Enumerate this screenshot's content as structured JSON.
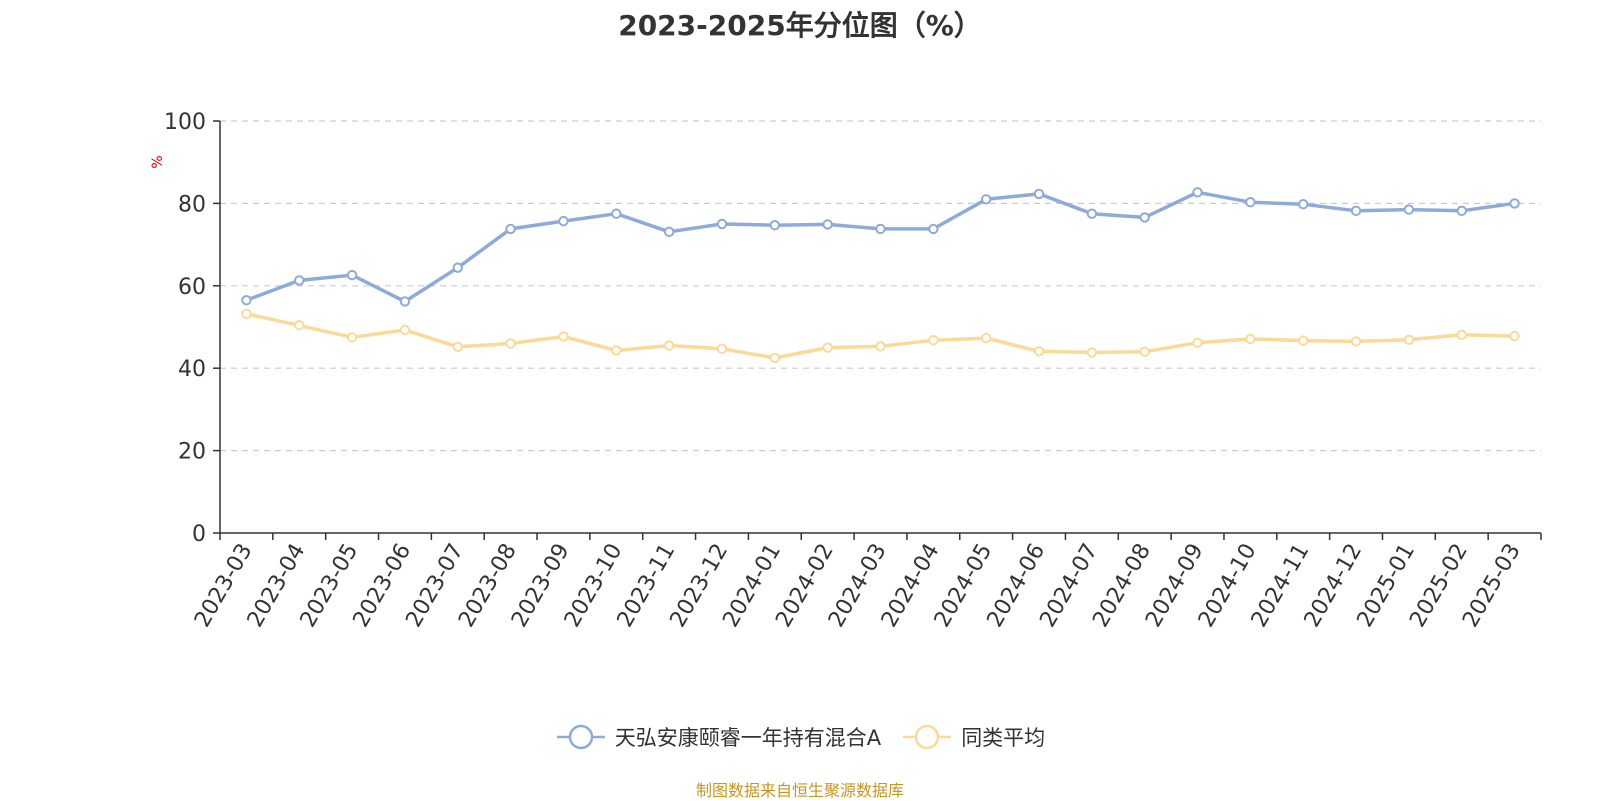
{
  "chart_data": {
    "type": "line",
    "title": "2023-2025年分位图（%）",
    "ylabel": "%",
    "xlabel": "",
    "ylim": [
      0,
      100
    ],
    "yticks": [
      0,
      20,
      40,
      60,
      80,
      100
    ],
    "grid": true,
    "legend_position": "bottom",
    "categories": [
      "2023-03",
      "2023-04",
      "2023-05",
      "2023-06",
      "2023-07",
      "2023-08",
      "2023-09",
      "2023-10",
      "2023-11",
      "2023-12",
      "2024-01",
      "2024-02",
      "2024-03",
      "2024-04",
      "2024-05",
      "2024-06",
      "2024-07",
      "2024-08",
      "2024-09",
      "2024-10",
      "2024-11",
      "2024-12",
      "2025-01",
      "2025-02",
      "2025-03"
    ],
    "series": [
      {
        "name": "天弘安康颐睿一年持有混合A",
        "color": "#8eaad8",
        "values": [
          56.5,
          61.3,
          62.6,
          56.2,
          64.4,
          73.8,
          75.7,
          77.5,
          73.1,
          75.0,
          74.7,
          74.9,
          73.8,
          73.8,
          81.0,
          82.3,
          77.5,
          76.6,
          82.7,
          80.3,
          79.8,
          78.2,
          78.5,
          78.2,
          80.0
        ]
      },
      {
        "name": "同类平均",
        "color": "#fbd998",
        "values": [
          53.2,
          50.4,
          47.5,
          49.3,
          45.2,
          46.0,
          47.7,
          44.3,
          45.5,
          44.7,
          42.5,
          45.0,
          45.3,
          46.8,
          47.3,
          44.1,
          43.8,
          44.0,
          46.2,
          47.1,
          46.7,
          46.5,
          46.9,
          48.1,
          47.8
        ]
      }
    ]
  },
  "source_note": "制图数据来自恒生聚源数据库",
  "colors": {
    "axis": "#333333",
    "grid": "#cccccc",
    "ylabel": "#e00000",
    "source_note": "#c8961c"
  }
}
